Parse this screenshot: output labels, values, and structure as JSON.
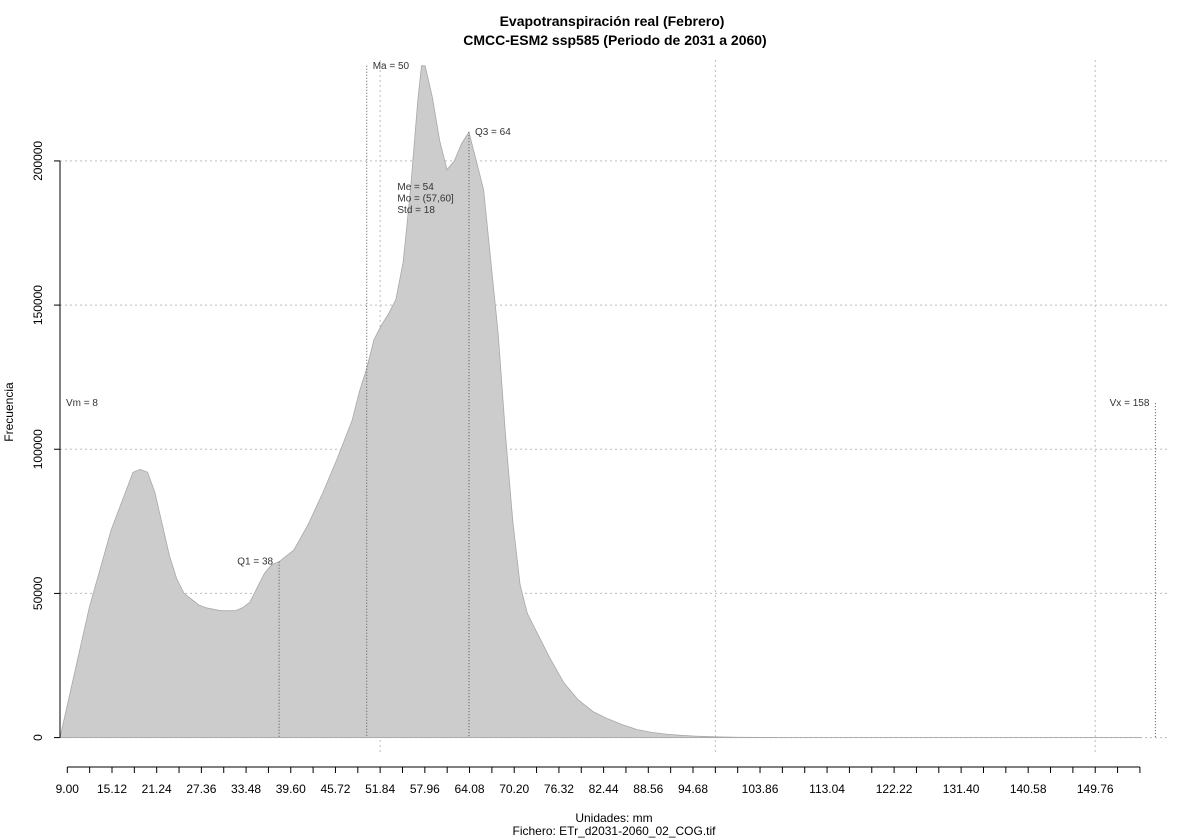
{
  "chart_data": {
    "type": "area",
    "title": "Evapotranspiración real (Febrero)",
    "subtitle": "CMCC-ESM2 ssp585 (Periodo de 2031 a 2060)",
    "xlabel": "Unidades: mm",
    "ylabel": "Frecuencia",
    "file_label": "Fichero: ETr_d2031-2060_02_COG.tif",
    "xlim": [
      8,
      160
    ],
    "ylim": [
      -5000,
      235000
    ],
    "grid": true,
    "fill_color": "#cccccc",
    "x_tick_labels": [
      "9.00",
      "15.12",
      "21.24",
      "27.36",
      "33.48",
      "39.60",
      "45.72",
      "51.84",
      "57.96",
      "64.08",
      "70.20",
      "76.32",
      "82.44",
      "88.56",
      "94.68",
      "103.86",
      "113.04",
      "122.22",
      "131.40",
      "140.58",
      "149.76"
    ],
    "x_tick_values": [
      9.0,
      15.12,
      21.24,
      27.36,
      33.48,
      39.6,
      45.72,
      51.84,
      57.96,
      64.08,
      70.2,
      76.32,
      82.44,
      88.56,
      94.68,
      103.86,
      113.04,
      122.22,
      131.4,
      140.58,
      149.76
    ],
    "y_ticks": [
      0,
      50000,
      100000,
      150000,
      200000
    ],
    "y_tick_labels": [
      "0",
      "50000",
      "100000",
      "150000",
      "200000"
    ],
    "density_x": [
      8,
      12,
      15,
      18,
      19,
      20,
      21,
      22,
      23,
      24,
      25,
      27,
      28,
      30,
      31,
      32,
      33,
      34,
      35,
      36,
      37,
      38,
      39,
      40,
      42,
      44,
      46,
      48,
      49,
      50,
      51,
      52,
      53,
      54,
      55,
      56,
      57,
      57.5,
      58,
      59,
      60,
      61,
      62,
      63,
      64,
      65,
      66,
      67,
      68,
      69,
      70,
      71,
      72,
      73,
      75,
      77,
      79,
      81,
      83,
      85,
      87,
      89,
      91,
      93,
      95,
      97,
      99,
      101,
      105,
      110,
      120,
      130,
      140,
      150,
      156
    ],
    "density_y": [
      0,
      45000,
      72000,
      92000,
      93000,
      92000,
      85000,
      74000,
      63000,
      55000,
      50000,
      46000,
      45000,
      44000,
      44000,
      44000,
      45000,
      47000,
      52000,
      57000,
      60000,
      61000,
      63000,
      65000,
      74000,
      85000,
      97000,
      110000,
      120000,
      128000,
      138000,
      143000,
      147000,
      152000,
      165000,
      190000,
      221000,
      233000,
      233000,
      222000,
      207000,
      197000,
      200000,
      206000,
      210000,
      200000,
      190000,
      165000,
      140000,
      105000,
      75000,
      53000,
      43000,
      38000,
      28000,
      19000,
      13000,
      9000,
      6500,
      4500,
      2800,
      1800,
      1200,
      800,
      500,
      300,
      200,
      100,
      50,
      0,
      0,
      0,
      0,
      0,
      0
    ],
    "markers": [
      {
        "name": "Vm",
        "label": "Vm = 8",
        "x": 8,
        "y": 116000,
        "label_side": "right"
      },
      {
        "name": "Q1",
        "label": "Q1 = 38",
        "x": 38,
        "y": 61000,
        "label_side": "left"
      },
      {
        "name": "Ma",
        "label": "Ma = 50",
        "x": 50,
        "y": 233000,
        "label_side": "right"
      },
      {
        "name": "Q3",
        "label": "Q3 = 64",
        "x": 64,
        "y": 210000,
        "label_side": "right"
      },
      {
        "name": "Vx",
        "label": "Vx = 158",
        "x": 158,
        "y": 116000,
        "label_side": "left"
      }
    ],
    "vertical_grid_x": [
      51.84,
      97.74,
      149.76
    ],
    "stats": [
      "Me = 54",
      "Mo = (57,60]",
      "Std = 18"
    ]
  }
}
